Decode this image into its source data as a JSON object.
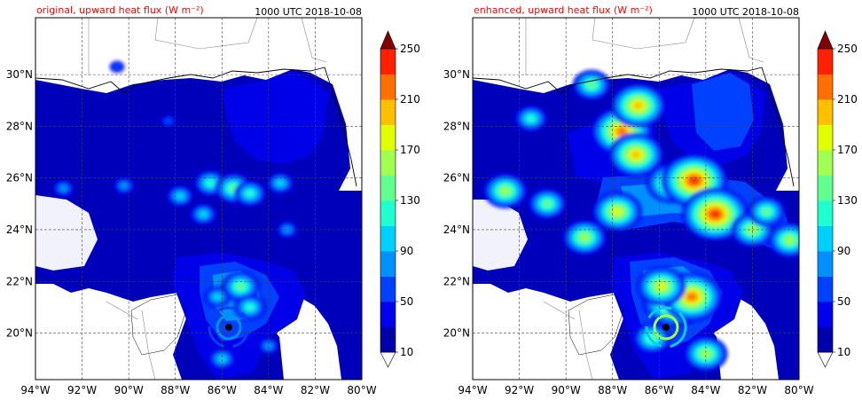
{
  "chart_data": [
    {
      "type": "heatmap",
      "title": "original, upward heat flux (W m⁻²)",
      "time_label": "1000 UTC 2018-10-08",
      "title_color": "#ff0000",
      "x_ticks": [
        "94°W",
        "92°W",
        "90°W",
        "88°W",
        "86°W",
        "84°W",
        "82°W",
        "80°W"
      ],
      "y_ticks": [
        "20°N",
        "22°N",
        "24°N",
        "26°N",
        "28°N",
        "30°N"
      ],
      "xlim": [
        -94,
        -80
      ],
      "ylim": [
        18.2,
        32.2
      ],
      "grid": true,
      "colorbar": {
        "levels": [
          10,
          30,
          50,
          70,
          90,
          110,
          130,
          150,
          170,
          190,
          210,
          230,
          250
        ],
        "labels": [
          "10",
          "50",
          "90",
          "130",
          "170",
          "210",
          "250"
        ],
        "colors": [
          "#0000aa",
          "#0000ee",
          "#0040ff",
          "#0090ff",
          "#00d0ff",
          "#20ffd0",
          "#60ff90",
          "#a0ff50",
          "#e0ff00",
          "#ffc000",
          "#ff7000",
          "#ff2000",
          "#c00000",
          "#800000"
        ],
        "extend": "both"
      },
      "hurricane_center": {
        "lon": -85.7,
        "lat": 20.2
      },
      "convective_cells": [
        {
          "lon": -86.5,
          "lat": 25.8,
          "level": 5
        },
        {
          "lon": -85.5,
          "lat": 25.6,
          "level": 6
        },
        {
          "lon": -84.8,
          "lat": 25.4,
          "level": 5
        },
        {
          "lon": -83.5,
          "lat": 25.8,
          "level": 4
        },
        {
          "lon": -87.8,
          "lat": 25.3,
          "level": 4
        },
        {
          "lon": -86.8,
          "lat": 24.6,
          "level": 4
        },
        {
          "lon": -85.2,
          "lat": 21.8,
          "level": 6
        },
        {
          "lon": -84.8,
          "lat": 21.0,
          "level": 5
        },
        {
          "lon": -86.2,
          "lat": 21.4,
          "level": 4
        },
        {
          "lon": -83.2,
          "lat": 24.0,
          "level": 3
        },
        {
          "lon": -92.8,
          "lat": 25.6,
          "level": 3
        },
        {
          "lon": -90.2,
          "lat": 25.7,
          "level": 3
        },
        {
          "lon": -88.3,
          "lat": 28.2,
          "level": 2
        },
        {
          "lon": -90.5,
          "lat": 30.3,
          "level": 2
        },
        {
          "lon": -86.0,
          "lat": 19.0,
          "level": 4
        },
        {
          "lon": -84.0,
          "lat": 19.5,
          "level": 3
        }
      ]
    },
    {
      "type": "heatmap",
      "title": "enhanced, upward heat flux (W m⁻²)",
      "time_label": "1000 UTC 2018-10-08",
      "title_color": "#ff0000",
      "x_ticks": [
        "94°W",
        "92°W",
        "90°W",
        "88°W",
        "86°W",
        "84°W",
        "82°W",
        "80°W"
      ],
      "y_ticks": [
        "20°N",
        "22°N",
        "24°N",
        "26°N",
        "28°N",
        "30°N"
      ],
      "xlim": [
        -94,
        -80
      ],
      "ylim": [
        18.2,
        32.2
      ],
      "grid": true,
      "colorbar": {
        "levels": [
          10,
          30,
          50,
          70,
          90,
          110,
          130,
          150,
          170,
          190,
          210,
          230,
          250
        ],
        "labels": [
          "10",
          "50",
          "90",
          "130",
          "170",
          "210",
          "250"
        ],
        "colors": [
          "#0000aa",
          "#0000ee",
          "#0040ff",
          "#0090ff",
          "#00d0ff",
          "#20ffd0",
          "#60ff90",
          "#a0ff50",
          "#e0ff00",
          "#ffc000",
          "#ff7000",
          "#ff2000",
          "#c00000",
          "#800000"
        ],
        "extend": "both"
      },
      "hurricane_center": {
        "lon": -85.7,
        "lat": 20.2
      },
      "convective_cells": [
        {
          "lon": -85.5,
          "lat": 25.8,
          "level": 8
        },
        {
          "lon": -84.5,
          "lat": 25.9,
          "level": 11
        },
        {
          "lon": -83.6,
          "lat": 24.6,
          "level": 11
        },
        {
          "lon": -87.6,
          "lat": 27.8,
          "level": 10
        },
        {
          "lon": -86.9,
          "lat": 28.8,
          "level": 9
        },
        {
          "lon": -87.0,
          "lat": 26.9,
          "level": 9
        },
        {
          "lon": -87.8,
          "lat": 24.7,
          "level": 8
        },
        {
          "lon": -85.3,
          "lat": 21.3,
          "level": 11
        },
        {
          "lon": -84.6,
          "lat": 21.4,
          "level": 10
        },
        {
          "lon": -85.9,
          "lat": 21.8,
          "level": 8
        },
        {
          "lon": -82.0,
          "lat": 24.0,
          "level": 7
        },
        {
          "lon": -80.4,
          "lat": 23.6,
          "level": 7
        },
        {
          "lon": -92.6,
          "lat": 25.5,
          "level": 7
        },
        {
          "lon": -90.8,
          "lat": 25.0,
          "level": 6
        },
        {
          "lon": -88.9,
          "lat": 29.6,
          "level": 6
        },
        {
          "lon": -91.5,
          "lat": 28.3,
          "level": 5
        },
        {
          "lon": -89.2,
          "lat": 23.7,
          "level": 7
        },
        {
          "lon": -84.0,
          "lat": 19.2,
          "level": 7
        },
        {
          "lon": -86.3,
          "lat": 19.8,
          "level": 6
        },
        {
          "lon": -81.4,
          "lat": 24.7,
          "level": 6
        }
      ]
    }
  ]
}
